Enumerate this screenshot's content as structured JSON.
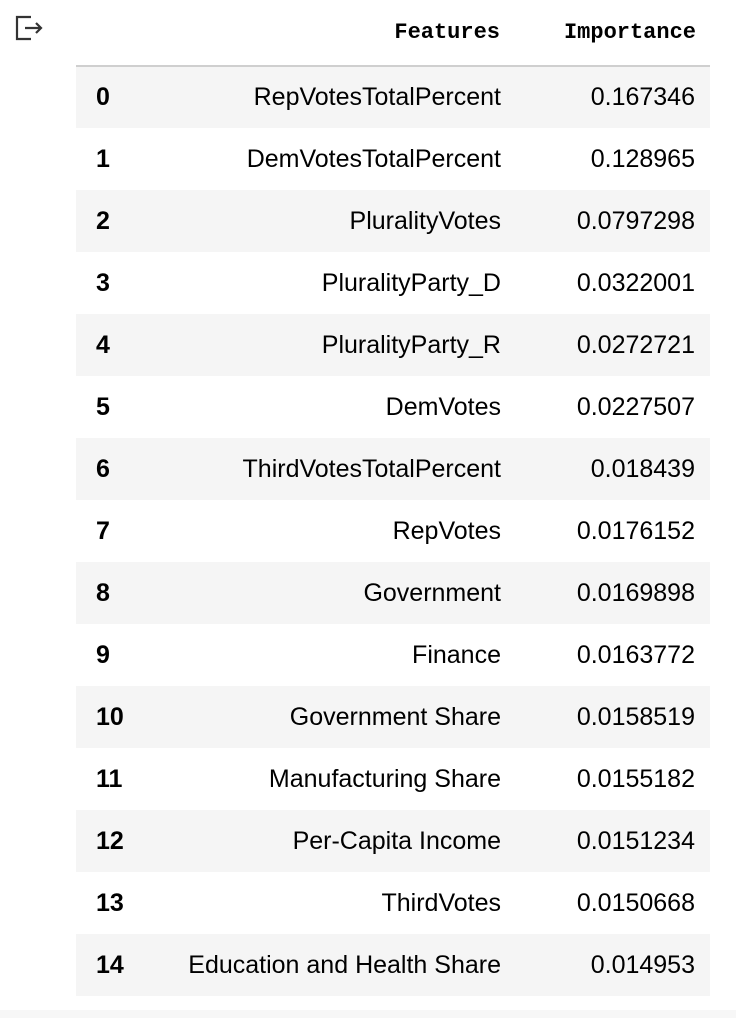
{
  "output_cell": {
    "icon": "output-arrow-icon"
  },
  "dataframe": {
    "index_header": "",
    "columns": [
      "Features",
      "Importance"
    ],
    "rows": [
      {
        "index": "0",
        "feature": "RepVotesTotalPercent",
        "importance": "0.167346"
      },
      {
        "index": "1",
        "feature": "DemVotesTotalPercent",
        "importance": "0.128965"
      },
      {
        "index": "2",
        "feature": "PluralityVotes",
        "importance": "0.0797298"
      },
      {
        "index": "3",
        "feature": "PluralityParty_D",
        "importance": "0.0322001"
      },
      {
        "index": "4",
        "feature": "PluralityParty_R",
        "importance": "0.0272721"
      },
      {
        "index": "5",
        "feature": "DemVotes",
        "importance": "0.0227507"
      },
      {
        "index": "6",
        "feature": "ThirdVotesTotalPercent",
        "importance": "0.018439"
      },
      {
        "index": "7",
        "feature": "RepVotes",
        "importance": "0.0176152"
      },
      {
        "index": "8",
        "feature": "Government",
        "importance": "0.0169898"
      },
      {
        "index": "9",
        "feature": "Finance",
        "importance": "0.0163772"
      },
      {
        "index": "10",
        "feature": "Government Share",
        "importance": "0.0158519"
      },
      {
        "index": "11",
        "feature": "Manufacturing Share",
        "importance": "0.0155182"
      },
      {
        "index": "12",
        "feature": "Per-Capita Income",
        "importance": "0.0151234"
      },
      {
        "index": "13",
        "feature": "ThirdVotes",
        "importance": "0.0150668"
      },
      {
        "index": "14",
        "feature": "Education and Health Share",
        "importance": "0.014953"
      }
    ]
  }
}
